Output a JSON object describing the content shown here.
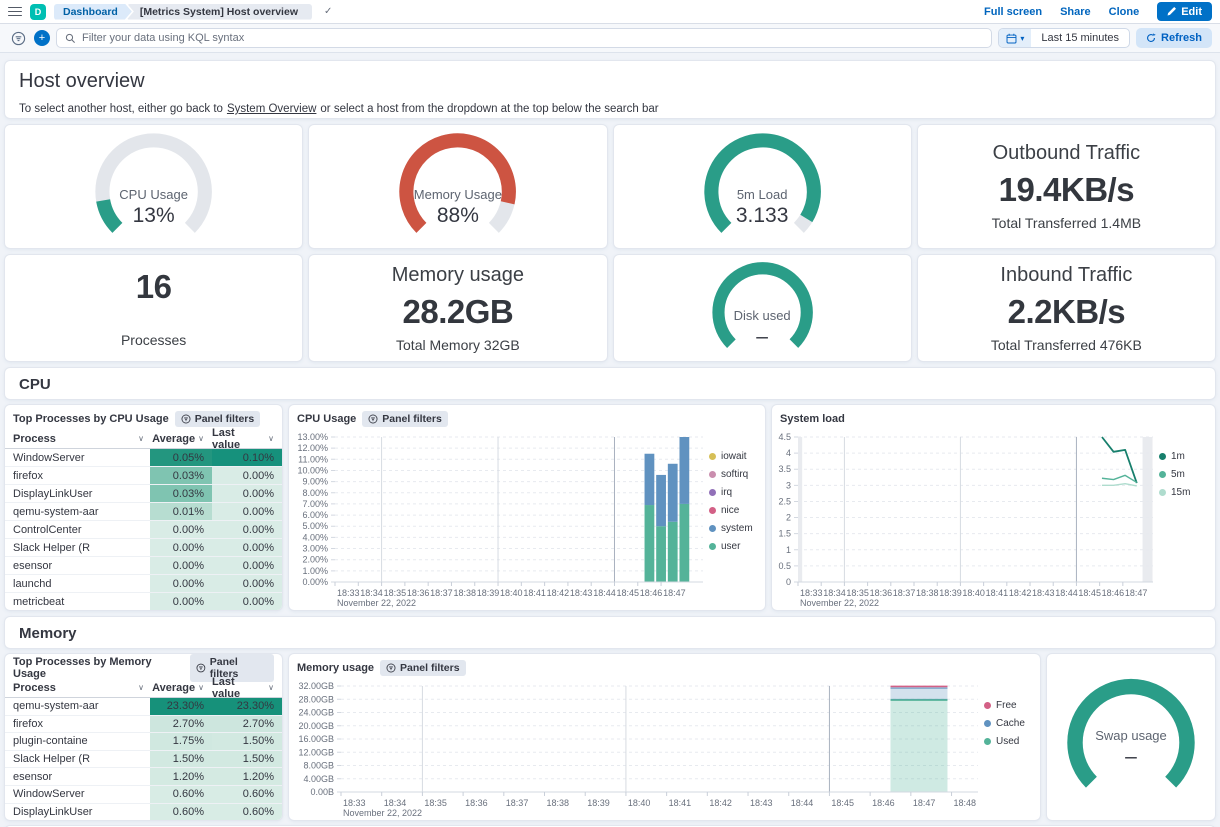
{
  "app": {
    "space_initial": "D",
    "breadcrumbs": {
      "first": "Dashboard",
      "current": "[Metrics System] Host overview"
    },
    "actions": {
      "full_screen": "Full screen",
      "share": "Share",
      "clone": "Clone",
      "edit": "Edit"
    }
  },
  "query_bar": {
    "placeholder": "Filter your data using KQL syntax",
    "time_range": "Last 15 minutes",
    "refresh": "Refresh"
  },
  "markdown": {
    "title": "Host overview",
    "before_link": "To select another host, either go back to",
    "link": "System Overview",
    "after_link": "or select a host from the dropdown at the top below the search bar"
  },
  "colors": {
    "gauge_green": "#2A9D88",
    "gauge_red": "#CD5442",
    "gauge_track": "#E3E6EB",
    "primary_blue": "#0071C7"
  },
  "metric_panels": {
    "cpu_gauge": {
      "label": "CPU Usage",
      "value": "13%",
      "fraction": 0.13,
      "color": "#2A9D88"
    },
    "memory_gauge": {
      "label": "Memory Usage",
      "value": "88%",
      "fraction": 0.88,
      "color": "#CD5442"
    },
    "load_gauge": {
      "label": "5m Load",
      "value": "3.133",
      "fraction": 0.95,
      "color": "#2A9D88"
    },
    "outbound": {
      "title": "Outbound Traffic",
      "value": "19.4KB/s",
      "subtitle": "Total Transferred 1.4MB"
    },
    "processes": {
      "value": "16",
      "label": "Processes"
    },
    "memory_total": {
      "title": "Memory usage",
      "value": "28.2GB",
      "subtitle": "Total Memory 32GB"
    },
    "disk_gauge": {
      "label": "Disk used",
      "value": "–",
      "fraction": 1,
      "color": "#2A9D88"
    },
    "inbound": {
      "title": "Inbound Traffic",
      "value": "2.2KB/s",
      "subtitle": "Total Transferred 476KB"
    }
  },
  "cpu_section": {
    "title": "CPU",
    "table": {
      "title": "Top Processes by CPU Usage",
      "panel_filters": "Panel filters",
      "columns": [
        "Process",
        "Average",
        "Last value"
      ],
      "row_class": "trow",
      "rows": [
        {
          "process": "WindowServer",
          "average": "0.05%",
          "last": "0.10%",
          "avg_bg": "#23967F",
          "last_bg": "#16917C"
        },
        {
          "process": "firefox",
          "average": "0.03%",
          "last": "0.00%",
          "avg_bg": "#7FC4B1",
          "last_bg": "#D9ECE6"
        },
        {
          "process": "DisplayLinkUser",
          "average": "0.03%",
          "last": "0.00%",
          "avg_bg": "#7FC4B1",
          "last_bg": "#D9ECE6"
        },
        {
          "process": "qemu-system-aar",
          "average": "0.01%",
          "last": "0.00%",
          "avg_bg": "#B7DDD1",
          "last_bg": "#D9ECE6"
        },
        {
          "process": "ControlCenter",
          "average": "0.00%",
          "last": "0.00%",
          "avg_bg": "#D9ECE6",
          "last_bg": "#D9ECE6"
        },
        {
          "process": "Slack Helper (R",
          "average": "0.00%",
          "last": "0.00%",
          "avg_bg": "#D9ECE6",
          "last_bg": "#D9ECE6"
        },
        {
          "process": "esensor",
          "average": "0.00%",
          "last": "0.00%",
          "avg_bg": "#D9ECE6",
          "last_bg": "#D9ECE6"
        },
        {
          "process": "launchd",
          "average": "0.00%",
          "last": "0.00%",
          "avg_bg": "#D9ECE6",
          "last_bg": "#D9ECE6"
        },
        {
          "process": "metricbeat",
          "average": "0.00%",
          "last": "0.00%",
          "avg_bg": "#D9ECE6",
          "last_bg": "#D9ECE6"
        }
      ]
    }
  },
  "memory_section": {
    "title": "Memory",
    "table": {
      "title": "Top Processes by Memory Usage",
      "panel_filters": "Panel filters",
      "columns": [
        "Process",
        "Average",
        "Last value"
      ],
      "row_class": "trow trow-mem",
      "rows": [
        {
          "process": "qemu-system-aar",
          "average": "23.30%",
          "last": "23.30%",
          "avg_bg": "#16917A",
          "last_bg": "#16917A"
        },
        {
          "process": "firefox",
          "average": "2.70%",
          "last": "2.70%",
          "avg_bg": "#CDE6DE",
          "last_bg": "#CDE6DE"
        },
        {
          "process": "plugin-containe",
          "average": "1.75%",
          "last": "1.50%",
          "avg_bg": "#D0E8E0",
          "last_bg": "#D2E9E1"
        },
        {
          "process": "Slack Helper (R",
          "average": "1.50%",
          "last": "1.50%",
          "avg_bg": "#D2E9E1",
          "last_bg": "#D2E9E1"
        },
        {
          "process": "esensor",
          "average": "1.20%",
          "last": "1.20%",
          "avg_bg": "#D4EAE2",
          "last_bg": "#D4EAE2"
        },
        {
          "process": "WindowServer",
          "average": "0.60%",
          "last": "0.60%",
          "avg_bg": "#D8ECE5",
          "last_bg": "#D8ECE5"
        },
        {
          "process": "DisplayLinkUser",
          "average": "0.60%",
          "last": "0.60%",
          "avg_bg": "#D8ECE5",
          "last_bg": "#D8ECE5"
        }
      ]
    },
    "swap_gauge": {
      "label": "Swap usage",
      "value": "–",
      "fraction": 1,
      "color": "#2A9D88"
    }
  },
  "chart_data": [
    {
      "id": "cpu-usage-chart",
      "type": "bar",
      "title": "CPU Usage",
      "panel_filters": "Panel filters",
      "x_tick_labels": [
        "18:33",
        "18:34",
        "18:35",
        "18:36",
        "18:37",
        "18:38",
        "18:39",
        "18:40",
        "18:41",
        "18:42",
        "18:43",
        "18:44",
        "18:45",
        "18:46",
        "18:47"
      ],
      "x_date_label": "November 22, 2022",
      "x_domain": 15.8,
      "ml": 46,
      "ylim": [
        0,
        13
      ],
      "y_ticks": [
        0,
        1,
        2,
        3,
        4,
        5,
        6,
        7,
        8,
        9,
        10,
        11,
        12,
        13
      ],
      "y_tick_labels": [
        "0.00%",
        "1.00%",
        "2.00%",
        "3.00%",
        "4.00%",
        "5.00%",
        "6.00%",
        "7.00%",
        "8.00%",
        "9.00%",
        "10.00%",
        "11.00%",
        "12.00%",
        "13.00%"
      ],
      "grid_verticals": [
        2,
        7,
        12
      ],
      "legend": [
        {
          "name": "iowait",
          "color": "#D6BF57"
        },
        {
          "name": "softirq",
          "color": "#CA8EAE"
        },
        {
          "name": "irq",
          "color": "#9170B8"
        },
        {
          "name": "nice",
          "color": "#D36086"
        },
        {
          "name": "system",
          "color": "#6092C0"
        },
        {
          "name": "user",
          "color": "#54B399"
        }
      ],
      "bars": {
        "x": [
          13.5,
          14.0,
          14.5,
          15.0
        ],
        "width": 0.42,
        "series": [
          {
            "name": "user",
            "color": "#54B399",
            "values": [
              6.9,
              5.0,
              5.4,
              7.0
            ]
          },
          {
            "name": "system",
            "color": "#6092C0",
            "values": [
              4.6,
              4.6,
              5.2,
              6.0
            ]
          }
        ]
      }
    },
    {
      "id": "system-load-chart",
      "type": "line",
      "title": "System load",
      "x_tick_labels": [
        "18:33",
        "18:34",
        "18:35",
        "18:36",
        "18:37",
        "18:38",
        "18:39",
        "18:40",
        "18:41",
        "18:42",
        "18:43",
        "18:44",
        "18:45",
        "18:46",
        "18:47"
      ],
      "x_date_label": "November 22, 2022",
      "x_domain": 15.3,
      "ml": 26,
      "ylim": [
        0,
        4.5
      ],
      "y_ticks": [
        0,
        0.5,
        1,
        1.5,
        2,
        2.5,
        3,
        3.5,
        4,
        4.5
      ],
      "y_tick_labels": [
        "0",
        "0.5",
        "1",
        "1.5",
        "2",
        "2.5",
        "3",
        "3.5",
        "4",
        "4.5"
      ],
      "grid_verticals": [
        2,
        7,
        12
      ],
      "endzones": [
        [
          0,
          0.18
        ],
        [
          14.85,
          15.28
        ]
      ],
      "legend": [
        {
          "name": "1m",
          "color": "#177F6C"
        },
        {
          "name": "5m",
          "color": "#54B399"
        },
        {
          "name": "15m",
          "color": "#AFDCCE"
        }
      ],
      "series": [
        {
          "name": "1m",
          "color": "#177F6C",
          "x": [
            13.1,
            13.6,
            14.1,
            14.6
          ],
          "y": [
            4.5,
            4.04,
            4.1,
            3.07
          ]
        },
        {
          "name": "5m",
          "color": "#54B399",
          "x": [
            13.1,
            13.6,
            14.1,
            14.6
          ],
          "y": [
            3.22,
            3.18,
            3.31,
            3.09
          ]
        },
        {
          "name": "15m",
          "color": "#AFDCCE",
          "x": [
            13.1,
            13.6,
            14.1,
            14.6
          ],
          "y": [
            3.0,
            3.0,
            3.05,
            2.98
          ]
        }
      ]
    },
    {
      "id": "memory-usage-chart",
      "type": "area",
      "title": "Memory usage",
      "panel_filters": "Panel filters",
      "x_tick_labels": [
        "18:33",
        "18:34",
        "18:35",
        "18:36",
        "18:37",
        "18:38",
        "18:39",
        "18:40",
        "18:41",
        "18:42",
        "18:43",
        "18:44",
        "18:45",
        "18:46",
        "18:47",
        "18:48"
      ],
      "x_date_label": "November 22, 2022",
      "x_domain": 15.65,
      "ml": 52,
      "ylim": [
        0,
        32
      ],
      "y_ticks": [
        0,
        4,
        8,
        12,
        16,
        20,
        24,
        28,
        32
      ],
      "y_tick_labels": [
        "0.00B",
        "4.00GB",
        "8.00GB",
        "12.00GB",
        "16.00GB",
        "20.00GB",
        "24.00GB",
        "28.00GB",
        "32.00GB"
      ],
      "grid_verticals": [
        2,
        7,
        12
      ],
      "legend": [
        {
          "name": "Free",
          "color": "#D36086"
        },
        {
          "name": "Cache",
          "color": "#6092C0"
        },
        {
          "name": "Used",
          "color": "#54B399"
        }
      ],
      "area": {
        "x0": 13.5,
        "x1": 14.9,
        "layers": [
          {
            "name": "Used",
            "top": 27.8,
            "color": "#54B399"
          },
          {
            "name": "Cache",
            "top": 31.4,
            "color": "#6092C0"
          },
          {
            "name": "Free",
            "top": 31.9,
            "color": "#D36086"
          }
        ]
      }
    }
  ]
}
